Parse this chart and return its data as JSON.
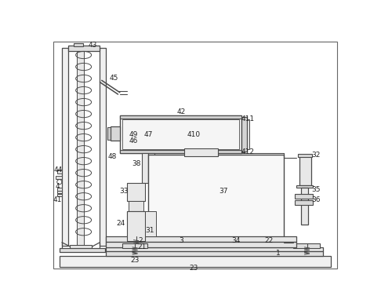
{
  "bg_color": "#ffffff",
  "line_color": "#4a4a4a",
  "lw": 0.8,
  "fig_width": 4.86,
  "fig_height": 3.91,
  "dpi": 100
}
